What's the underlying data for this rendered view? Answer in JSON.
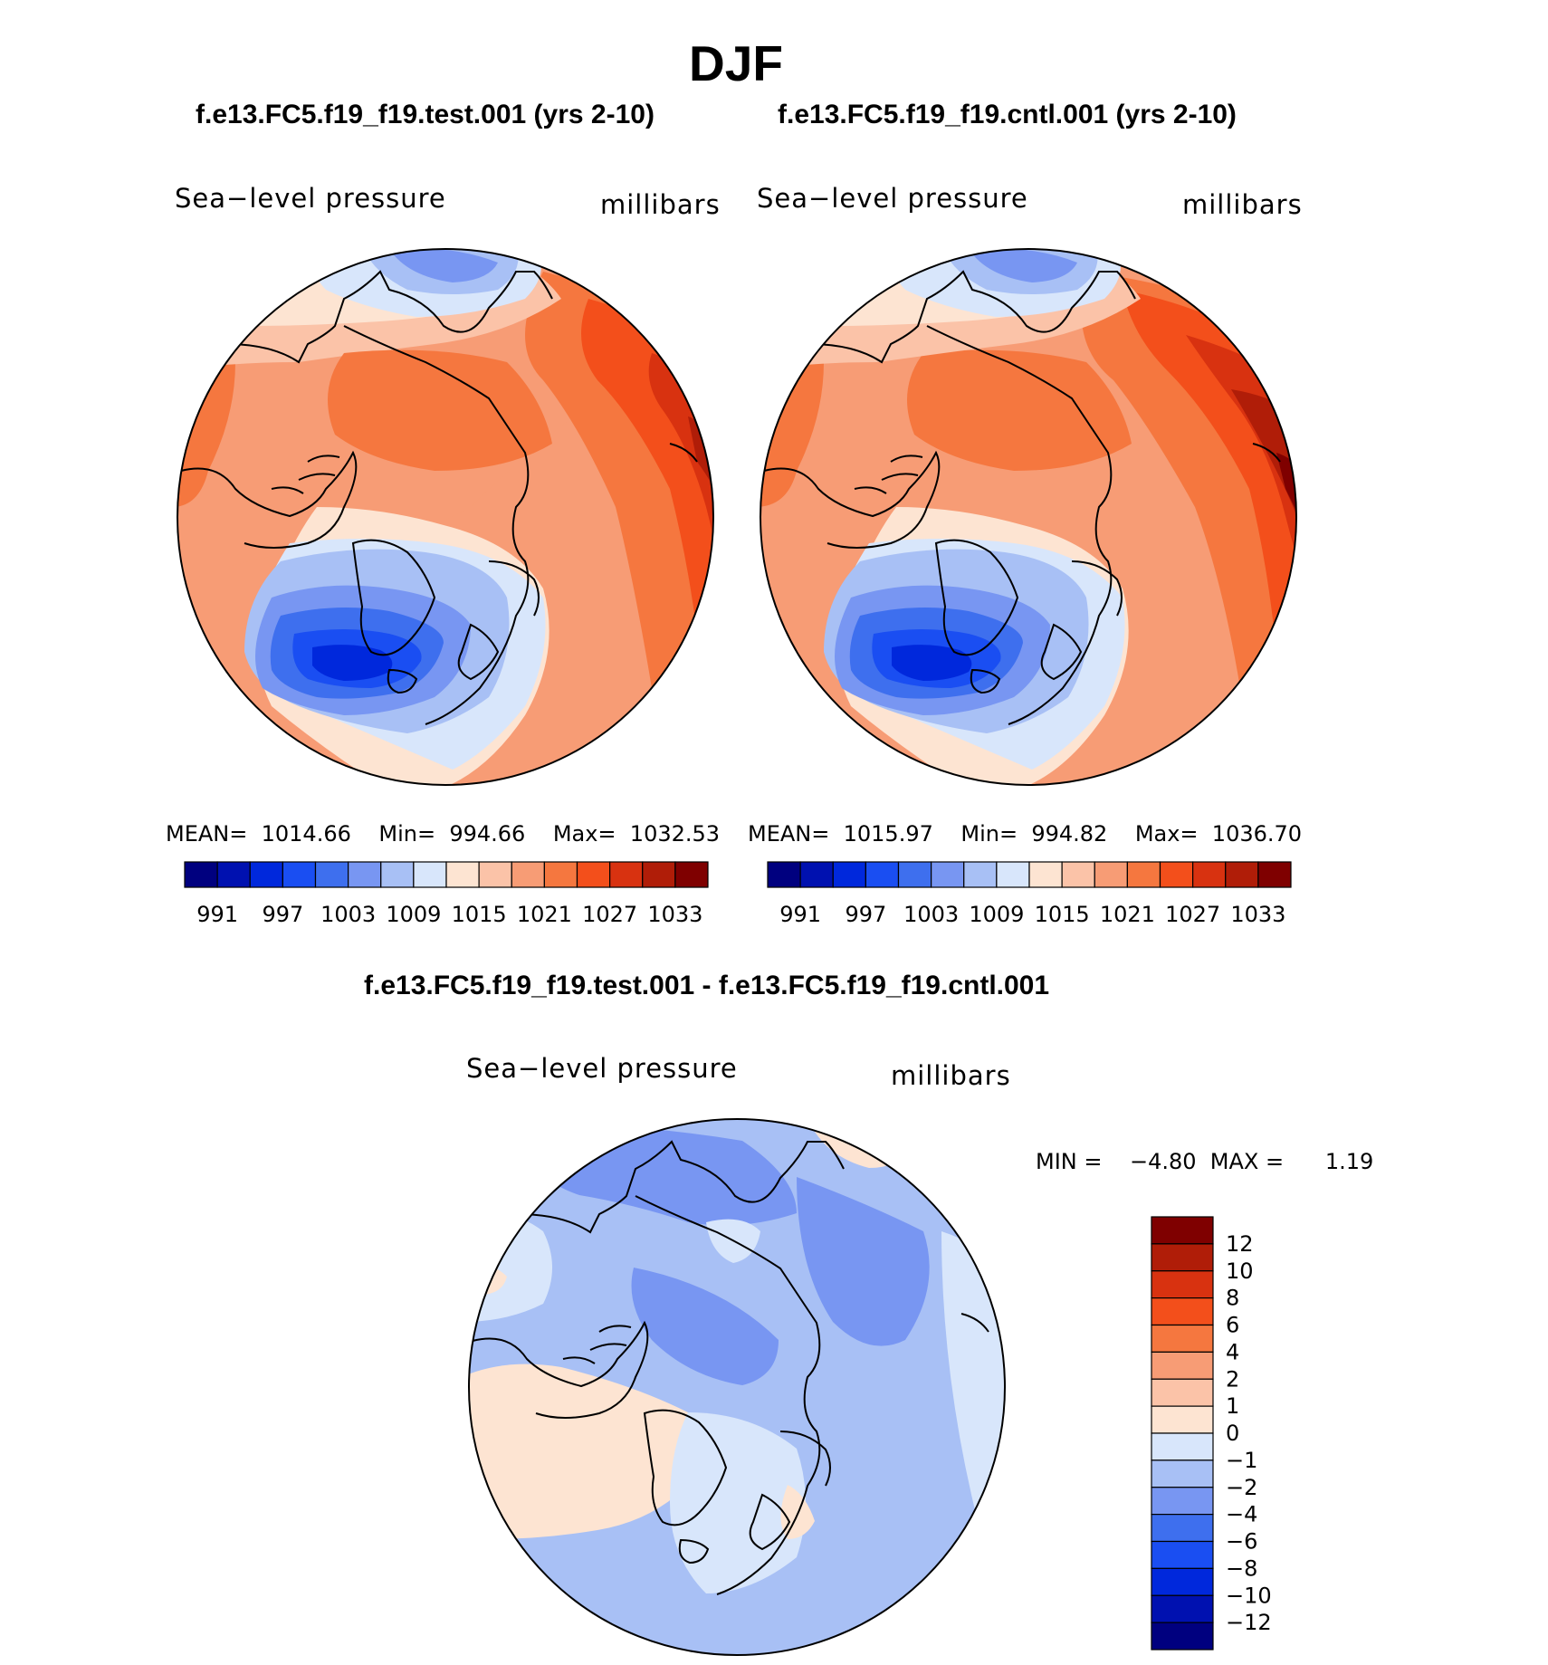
{
  "page": {
    "season": "DJF",
    "diff_title": "f.e13.FC5.f19_f19.test.001 - f.e13.FC5.f19_f19.cntl.001"
  },
  "panels": [
    {
      "title": "f.e13.FC5.f19_f19.test.001 (yrs 2-10)",
      "variable": "Sea−level pressure",
      "units": "millibars",
      "stats": "MEAN=  1014.66    Min=  994.66    Max=  1032.53",
      "contour_levels": [
        "991",
        "997",
        "1003",
        "1009",
        "1015",
        "1021",
        "1027",
        "1033"
      ]
    },
    {
      "title": "f.e13.FC5.f19_f19.cntl.001 (yrs 2-10)",
      "variable": "Sea−level pressure",
      "units": "millibars",
      "stats": "MEAN=  1015.97    Min=  994.82    Max=  1036.70",
      "contour_levels": [
        "991",
        "997",
        "1003",
        "1009",
        "1015",
        "1021",
        "1027",
        "1033"
      ]
    },
    {
      "title": "f.e13.FC5.f19_f19.test.001 - f.e13.FC5.f19_f19.cntl.001",
      "variable": "Sea−level pressure",
      "units": "millibars",
      "stats": "MIN =    −4.80  MAX =      1.19",
      "contour_levels": [
        "12",
        "10",
        "8",
        "6",
        "4",
        "2",
        "1",
        "0",
        "−1",
        "−2",
        "−4",
        "−6",
        "−8",
        "−10",
        "−12"
      ]
    }
  ],
  "colors": {
    "abs_scale": [
      "#00007f",
      "#0011b0",
      "#0028dc",
      "#1a4ef2",
      "#3e6fee",
      "#7896f2",
      "#a8c0f5",
      "#d8e6fb",
      "#fde4d2",
      "#fbc3a8",
      "#f79c75",
      "#f5773f",
      "#f34f1b",
      "#d83210",
      "#b01d08",
      "#7f0000"
    ],
    "diff_scale": [
      "#7f0000",
      "#b01d08",
      "#d83210",
      "#f34f1b",
      "#f5773f",
      "#f79c75",
      "#fbc3a8",
      "#fde4d2",
      "#d8e6fb",
      "#a8c0f5",
      "#7896f2",
      "#3e6fee",
      "#1a4ef2",
      "#0028dc",
      "#0011b0",
      "#00007f"
    ]
  }
}
